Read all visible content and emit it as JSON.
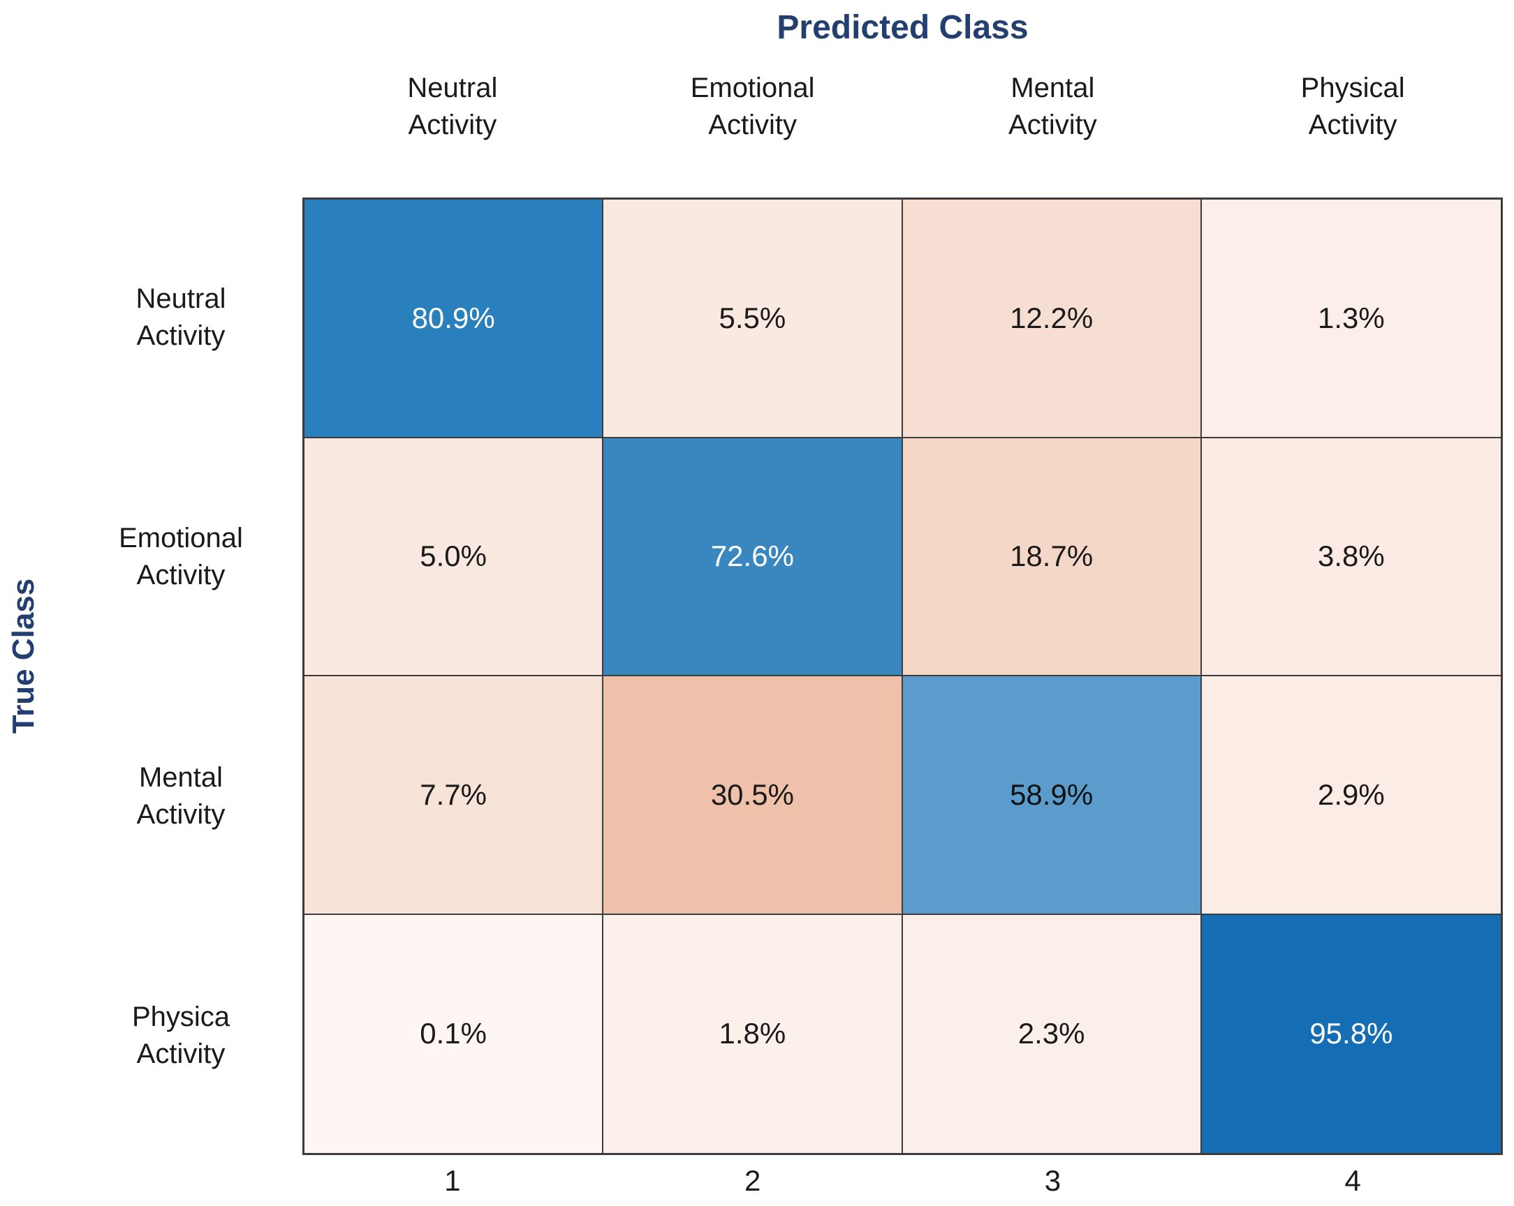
{
  "chart_data": {
    "type": "heatmap",
    "title": "Predicted Class",
    "x_axis_title": "Predicted Class",
    "y_axis_title": "True Class",
    "legend": "none",
    "col_headers": [
      [
        "Neutral",
        "Activity"
      ],
      [
        "Emotional",
        "Activity"
      ],
      [
        "Mental",
        "Activity"
      ],
      [
        "Physical",
        "Activity"
      ]
    ],
    "row_headers": [
      [
        "Neutral",
        "Activity"
      ],
      [
        "Emotional",
        "Activity"
      ],
      [
        "Mental",
        "Activity"
      ],
      [
        "Physica",
        "Activity"
      ]
    ],
    "x_tick_labels": [
      "1",
      "2",
      "3",
      "4"
    ],
    "values_percent": [
      [
        80.9,
        5.5,
        12.2,
        1.3
      ],
      [
        5.0,
        72.6,
        18.7,
        3.8
      ],
      [
        7.7,
        30.5,
        58.9,
        2.9
      ],
      [
        0.1,
        1.8,
        2.3,
        95.8
      ]
    ],
    "cell_labels": [
      [
        "80.9%",
        "5.5%",
        "12.2%",
        "1.3%"
      ],
      [
        "5.0%",
        "72.6%",
        "18.7%",
        "3.8%"
      ],
      [
        "7.7%",
        "30.5%",
        "58.9%",
        "2.9%"
      ],
      [
        "0.1%",
        "1.8%",
        "2.3%",
        "95.8%"
      ]
    ],
    "cell_colors": [
      [
        "#2a80bd",
        "#fae9e1",
        "#f6dfd2",
        "#fcefe9"
      ],
      [
        "#fae9e1",
        "#3a87c0",
        "#f5d7c8",
        "#fbebe4"
      ],
      [
        "#f8e3d8",
        "#efc1ab",
        "#5c9ccc",
        "#fbece6"
      ],
      [
        "#fdf6f3",
        "#fcf0eb",
        "#fbefe9",
        "#156db4"
      ]
    ],
    "cell_text_colors": [
      [
        "#ffffff",
        "#1a1a1a",
        "#1a1a1a",
        "#1a1a1a"
      ],
      [
        "#1a1a1a",
        "#ffffff",
        "#1a1a1a",
        "#1a1a1a"
      ],
      [
        "#1a1a1a",
        "#1a1a1a",
        "#111111",
        "#1a1a1a"
      ],
      [
        "#1a1a1a",
        "#1a1a1a",
        "#1a1a1a",
        "#ffffff"
      ]
    ],
    "colors": {
      "title_accent": "#223f6f",
      "grid_line": "#3c3c3c",
      "diagonal_strong_blue": "#156db4",
      "off_diagonal_base": "#fdf6f3"
    },
    "layout_hints": {
      "grid": "4x4",
      "column_header_position": "top",
      "row_label_position": "left",
      "x_ticks_position": "bottom"
    }
  }
}
